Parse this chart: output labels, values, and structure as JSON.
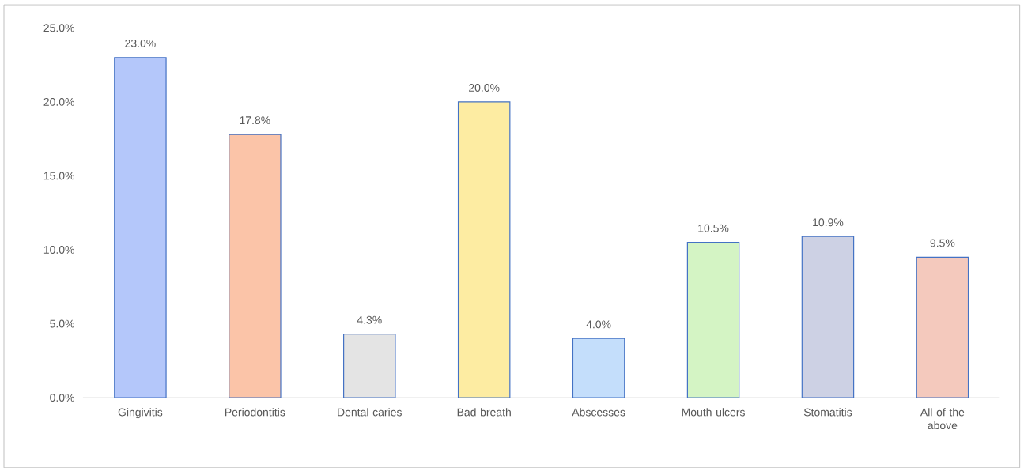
{
  "chart_data": {
    "type": "bar",
    "categories": [
      "Gingivitis",
      "Periodontitis",
      "Dental caries",
      "Bad breath",
      "Abscesses",
      "Mouth ulcers",
      "Stomatitis",
      "All of the above"
    ],
    "values": [
      23.0,
      17.8,
      4.3,
      20.0,
      4.0,
      10.5,
      10.9,
      9.5
    ],
    "colors": [
      "#b4c7fa",
      "#fbc4a8",
      "#e4e4e4",
      "#fdeca2",
      "#c4defb",
      "#d4f4c4",
      "#cdd1e4",
      "#f4c9bd"
    ],
    "value_labels": [
      "23.0%",
      "17.8%",
      "4.3%",
      "20.0%",
      "4.0%",
      "10.5%",
      "10.9%",
      "9.5%"
    ],
    "ylim": [
      0,
      25
    ],
    "yticks": [
      {
        "value": 0,
        "label": "0.0%"
      },
      {
        "value": 5,
        "label": "5.0%"
      },
      {
        "value": 10,
        "label": "10.0%"
      },
      {
        "value": 15,
        "label": "15.0%"
      },
      {
        "value": 20,
        "label": "20.0%"
      },
      {
        "value": 25,
        "label": "25.0%"
      }
    ]
  }
}
